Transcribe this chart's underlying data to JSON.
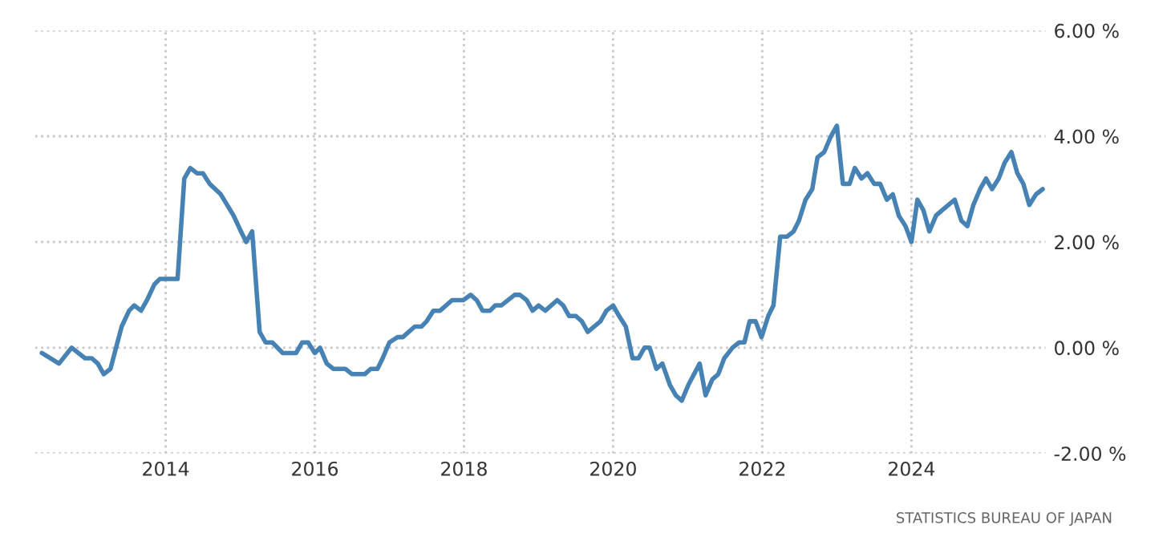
{
  "chart_data": {
    "type": "line",
    "x": [
      2012.34,
      2012.57,
      2012.74,
      2012.92,
      2013.01,
      2013.09,
      2013.17,
      2013.26,
      2013.41,
      2013.51,
      2013.58,
      2013.67,
      2013.75,
      2013.85,
      2013.92,
      2014.16,
      2014.25,
      2014.33,
      2014.42,
      2014.5,
      2014.59,
      2014.74,
      2014.91,
      2015.01,
      2015.08,
      2015.16,
      2015.26,
      2015.34,
      2015.43,
      2015.57,
      2015.75,
      2015.83,
      2015.91,
      2016.0,
      2016.07,
      2016.16,
      2016.25,
      2016.41,
      2016.5,
      2016.67,
      2016.75,
      2016.84,
      2016.91,
      2017.0,
      2017.11,
      2017.18,
      2017.34,
      2017.43,
      2017.5,
      2017.59,
      2017.68,
      2017.84,
      2017.99,
      2018.09,
      2018.17,
      2018.25,
      2018.35,
      2018.42,
      2018.5,
      2018.68,
      2018.75,
      2018.84,
      2018.92,
      2019.0,
      2019.09,
      2019.25,
      2019.33,
      2019.41,
      2019.5,
      2019.58,
      2019.66,
      2019.83,
      2019.91,
      2020.0,
      2020.08,
      2020.17,
      2020.26,
      2020.34,
      2020.42,
      2020.49,
      2020.58,
      2020.66,
      2020.76,
      2020.84,
      2020.92,
      2021.01,
      2021.16,
      2021.24,
      2021.33,
      2021.41,
      2021.49,
      2021.6,
      2021.69,
      2021.76,
      2021.83,
      2021.91,
      2021.99,
      2022.08,
      2022.15,
      2022.24,
      2022.33,
      2022.42,
      2022.49,
      2022.58,
      2022.67,
      2022.74,
      2022.83,
      2022.92,
      2023.0,
      2023.08,
      2023.17,
      2023.24,
      2023.33,
      2023.41,
      2023.5,
      2023.58,
      2023.67,
      2023.75,
      2023.83,
      2023.92,
      2024.0,
      2024.08,
      2024.16,
      2024.24,
      2024.33,
      2024.41,
      2024.58,
      2024.67,
      2024.75,
      2024.83,
      2024.92,
      2025.0,
      2025.08,
      2025.17,
      2025.25,
      2025.34,
      2025.42,
      2025.5,
      2025.58,
      2025.67,
      2025.76
    ],
    "series": [
      {
        "color": "#4682b4",
        "values": [
          -0.1,
          -0.3,
          0.0,
          -0.2,
          -0.2,
          -0.3,
          -0.5,
          -0.4,
          0.4,
          0.7,
          0.8,
          0.7,
          0.9,
          1.2,
          1.3,
          1.3,
          3.2,
          3.4,
          3.3,
          3.3,
          3.1,
          2.9,
          2.5,
          2.2,
          2.0,
          2.2,
          0.3,
          0.1,
          0.1,
          -0.1,
          -0.1,
          0.1,
          0.1,
          -0.1,
          0.0,
          -0.3,
          -0.4,
          -0.4,
          -0.5,
          -0.5,
          -0.4,
          -0.4,
          -0.2,
          0.1,
          0.2,
          0.2,
          0.4,
          0.4,
          0.5,
          0.7,
          0.7,
          0.9,
          0.9,
          1.0,
          0.9,
          0.7,
          0.7,
          0.8,
          0.8,
          1.0,
          1.0,
          0.9,
          0.7,
          0.8,
          0.7,
          0.9,
          0.8,
          0.6,
          0.6,
          0.5,
          0.3,
          0.5,
          0.7,
          0.8,
          0.6,
          0.4,
          -0.2,
          -0.2,
          0.0,
          0.0,
          -0.4,
          -0.3,
          -0.7,
          -0.9,
          -1.0,
          -0.7,
          -0.3,
          -0.9,
          -0.6,
          -0.5,
          -0.2,
          0.0,
          0.1,
          0.1,
          0.5,
          0.5,
          0.2,
          0.6,
          0.8,
          2.1,
          2.1,
          2.2,
          2.4,
          2.8,
          3.0,
          3.6,
          3.7,
          4.0,
          4.2,
          3.1,
          3.1,
          3.4,
          3.2,
          3.3,
          3.1,
          3.1,
          2.8,
          2.9,
          2.5,
          2.3,
          2.0,
          2.8,
          2.6,
          2.2,
          2.5,
          2.6,
          2.8,
          2.4,
          2.3,
          2.7,
          3.0,
          3.2,
          3.0,
          3.2,
          3.5,
          3.7,
          3.3,
          3.1,
          2.7,
          2.9,
          3.0
        ]
      }
    ],
    "xlim": [
      2012.25,
      2025.8
    ],
    "xticks": [
      2014,
      2016,
      2018,
      2020,
      2022,
      2024
    ],
    "ylim": [
      -2,
      6
    ],
    "yticks": [
      {
        "value": -2,
        "label": "-2.00 %"
      },
      {
        "value": 0,
        "label": "0.00 %"
      },
      {
        "value": 2,
        "label": "2.00 %"
      },
      {
        "value": 4,
        "label": "4.00 %"
      },
      {
        "value": 6,
        "label": "6.00 %"
      }
    ],
    "grid": true,
    "marker": "none",
    "line_style": "solid",
    "legend": false,
    "annotations": [
      "STATISTICS BUREAU OF JAPAN"
    ]
  }
}
